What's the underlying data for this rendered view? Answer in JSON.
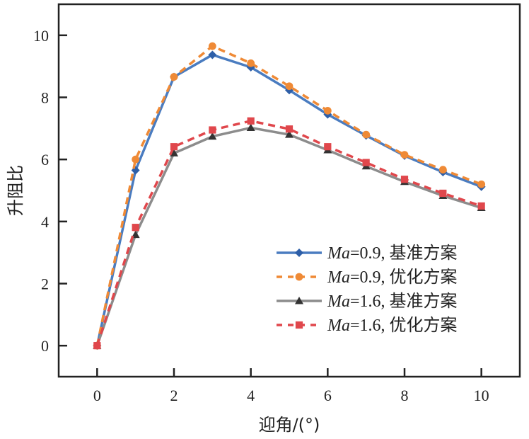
{
  "chart_data": {
    "type": "line",
    "title": "",
    "xlabel": "迎角/(°)",
    "ylabel": "升阻比",
    "xlim": [
      -1,
      11
    ],
    "ylim": [
      -1,
      11
    ],
    "xticks": [
      0,
      2,
      4,
      6,
      8,
      10
    ],
    "yticks": [
      0,
      2,
      4,
      6,
      8,
      10
    ],
    "grid": false,
    "legend_position": "bottom-right",
    "x": [
      0,
      1,
      2,
      3,
      4,
      5,
      6,
      7,
      8,
      9,
      10
    ],
    "series": [
      {
        "name": "Ma=0.9, 基准方案",
        "label_italic": "Ma",
        "label_rest": "=0.9, 基准方案",
        "color": "#4a7cc0",
        "marker_color": "#2e5fa8",
        "marker": "diamond",
        "dash": false,
        "values": [
          0.0,
          5.65,
          8.66,
          9.37,
          8.97,
          8.23,
          7.45,
          6.77,
          6.12,
          5.59,
          5.12
        ]
      },
      {
        "name": "Ma=0.9, 优化方案",
        "label_italic": "Ma",
        "label_rest": "=0.9, 优化方案",
        "color": "#ef8a36",
        "marker_color": "#ef8a36",
        "marker": "circle",
        "dash": true,
        "values": [
          0.0,
          6.0,
          8.66,
          9.65,
          9.1,
          8.36,
          7.57,
          6.8,
          6.15,
          5.67,
          5.2
        ]
      },
      {
        "name": "Ma=1.6, 基准方案",
        "label_italic": "Ma",
        "label_rest": "=1.6, 基准方案",
        "color": "#8c8c8c",
        "marker_color": "#333333",
        "marker": "triangle",
        "dash": false,
        "values": [
          0.0,
          3.57,
          6.2,
          6.74,
          7.02,
          6.8,
          6.3,
          5.78,
          5.28,
          4.83,
          4.44
        ]
      },
      {
        "name": "Ma=1.6, 优化方案",
        "label_italic": "Ma",
        "label_rest": "=1.6, 优化方案",
        "color": "#e0474c",
        "marker_color": "#e0474c",
        "marker": "square",
        "dash": true,
        "values": [
          0.0,
          3.81,
          6.41,
          6.95,
          7.24,
          6.98,
          6.41,
          5.9,
          5.36,
          4.91,
          4.5
        ]
      }
    ]
  }
}
